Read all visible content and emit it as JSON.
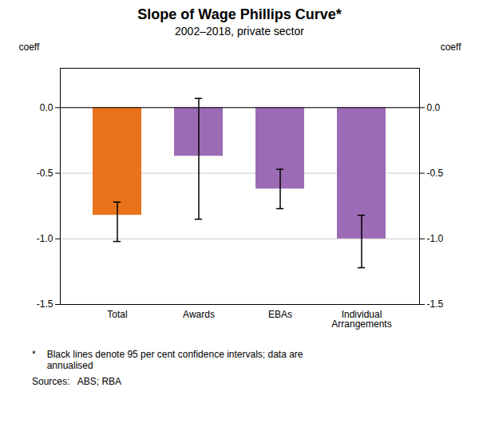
{
  "chart_data": {
    "type": "bar",
    "title": "Slope of Wage Phillips Curve*",
    "subtitle": "2002–2018, private sector",
    "categories": [
      "Total",
      "Awards",
      "EBAs",
      "Individual\nArrangements"
    ],
    "values": [
      -0.82,
      -0.37,
      -0.62,
      -1.0
    ],
    "colors": [
      "#E8731A",
      "#9B6BB5",
      "#9B6BB5",
      "#9B6BB5"
    ],
    "ci_lower": [
      -1.02,
      -0.85,
      -0.77,
      -1.22
    ],
    "ci_upper": [
      -0.72,
      0.07,
      -0.47,
      -0.82
    ],
    "ylabel": "coeff",
    "y2label": "coeff",
    "ylim": [
      -1.5,
      0.3
    ],
    "yticks": [
      -1.5,
      {
        "value": -1,
        "label": "-1.0"
      },
      -0.5,
      {
        "value": 0,
        "label": "0.0"
      }
    ],
    "y2lim": [
      -1.5,
      0.3
    ],
    "y2ticks": [
      -1.5,
      {
        "value": -1,
        "label": "-1.0"
      },
      -0.5,
      {
        "value": 0,
        "label": "0.0"
      }
    ],
    "grid": true,
    "annotations": [
      "*",
      "Black lines denote 95 per cent confidence intervals; data are\nannualised",
      "Sources:   ABS; RBA"
    ]
  }
}
